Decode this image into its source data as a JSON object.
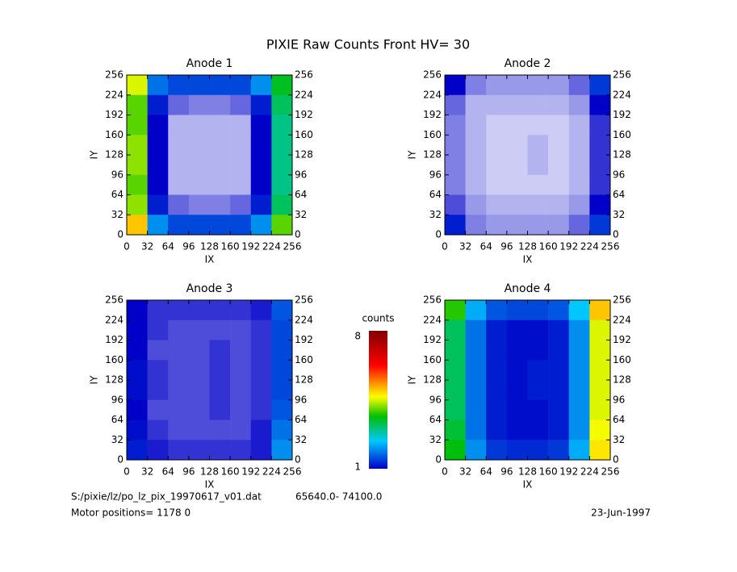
{
  "title": "PIXIE Raw Counts Front HV= 30",
  "chart_data": [
    {
      "type": "heatmap",
      "title": "Anode 1",
      "xlabel": "IX",
      "ylabel": "IY",
      "xlim": [
        0,
        256
      ],
      "ylim": [
        0,
        256
      ],
      "xticks": [
        0,
        32,
        64,
        96,
        128,
        160,
        192,
        224,
        256
      ],
      "yticks": [
        0,
        32,
        64,
        96,
        128,
        160,
        192,
        224,
        256
      ],
      "values": [
        [
          4.5,
          1.8,
          1.5,
          1.5,
          1.5,
          1.5,
          2.0,
          3.5
        ],
        [
          4.0,
          1.2,
          0.6,
          0.5,
          0.5,
          0.6,
          1.2,
          3.2
        ],
        [
          4.0,
          1.0,
          0.3,
          0.3,
          0.3,
          0.3,
          1.0,
          3.0
        ],
        [
          4.2,
          1.0,
          0.3,
          0.3,
          0.3,
          0.3,
          1.0,
          3.0
        ],
        [
          4.2,
          1.0,
          0.3,
          0.3,
          0.3,
          0.3,
          1.0,
          3.0
        ],
        [
          4.0,
          1.0,
          0.3,
          0.3,
          0.3,
          0.3,
          1.0,
          3.0
        ],
        [
          4.2,
          1.2,
          0.6,
          0.5,
          0.5,
          0.6,
          1.2,
          3.2
        ],
        [
          5.0,
          2.0,
          1.5,
          1.5,
          1.5,
          1.5,
          2.0,
          4.0
        ]
      ]
    },
    {
      "type": "heatmap",
      "title": "Anode 2",
      "xlabel": "IX",
      "ylabel": "IY",
      "xlim": [
        0,
        256
      ],
      "ylim": [
        0,
        256
      ],
      "xticks": [
        0,
        32,
        64,
        96,
        128,
        160,
        192,
        224,
        256
      ],
      "yticks": [
        0,
        32,
        64,
        96,
        128,
        160,
        192,
        224,
        256
      ],
      "values": [
        [
          1.0,
          0.5,
          0.4,
          0.4,
          0.4,
          0.4,
          0.6,
          1.4
        ],
        [
          0.6,
          0.3,
          0.3,
          0.3,
          0.3,
          0.3,
          0.4,
          1.0
        ],
        [
          0.5,
          0.3,
          0.2,
          0.2,
          0.2,
          0.2,
          0.3,
          0.8
        ],
        [
          0.5,
          0.3,
          0.2,
          0.2,
          0.3,
          0.2,
          0.3,
          0.8
        ],
        [
          0.5,
          0.3,
          0.2,
          0.2,
          0.3,
          0.2,
          0.3,
          0.8
        ],
        [
          0.5,
          0.3,
          0.2,
          0.2,
          0.2,
          0.2,
          0.3,
          0.8
        ],
        [
          0.7,
          0.4,
          0.3,
          0.3,
          0.3,
          0.3,
          0.4,
          1.0
        ],
        [
          1.2,
          0.5,
          0.4,
          0.4,
          0.4,
          0.4,
          0.6,
          1.4
        ]
      ]
    },
    {
      "type": "heatmap",
      "title": "Anode 3",
      "xlabel": "IX",
      "ylabel": "IY",
      "xlim": [
        0,
        256
      ],
      "ylim": [
        0,
        256
      ],
      "xticks": [
        0,
        32,
        64,
        96,
        128,
        160,
        192,
        224,
        256
      ],
      "yticks": [
        0,
        32,
        64,
        96,
        128,
        160,
        192,
        224,
        256
      ],
      "values": [
        [
          1.0,
          0.8,
          0.8,
          0.8,
          0.8,
          0.8,
          0.9,
          1.6
        ],
        [
          1.0,
          0.8,
          0.7,
          0.7,
          0.7,
          0.7,
          0.8,
          1.5
        ],
        [
          1.0,
          0.7,
          0.7,
          0.7,
          0.8,
          0.7,
          0.8,
          1.5
        ],
        [
          1.1,
          0.8,
          0.7,
          0.7,
          0.8,
          0.7,
          0.8,
          1.5
        ],
        [
          1.1,
          0.8,
          0.7,
          0.7,
          0.8,
          0.7,
          0.8,
          1.5
        ],
        [
          1.0,
          0.7,
          0.7,
          0.7,
          0.8,
          0.7,
          0.8,
          1.6
        ],
        [
          1.1,
          0.8,
          0.7,
          0.7,
          0.7,
          0.7,
          0.9,
          1.8
        ],
        [
          1.2,
          0.9,
          0.8,
          0.8,
          0.8,
          0.8,
          0.9,
          2.0
        ]
      ]
    },
    {
      "type": "heatmap",
      "title": "Anode 4",
      "xlabel": "IX",
      "ylabel": "IY",
      "xlim": [
        0,
        256
      ],
      "ylim": [
        0,
        256
      ],
      "xticks": [
        0,
        32,
        64,
        96,
        128,
        160,
        192,
        224,
        256
      ],
      "yticks": [
        0,
        32,
        64,
        96,
        128,
        160,
        192,
        224,
        256
      ],
      "values": [
        [
          3.8,
          2.2,
          1.6,
          1.5,
          1.5,
          1.6,
          2.4,
          5.0
        ],
        [
          3.2,
          1.8,
          1.2,
          1.1,
          1.1,
          1.2,
          2.0,
          4.5
        ],
        [
          3.2,
          1.8,
          1.2,
          1.1,
          1.1,
          1.2,
          2.0,
          4.5
        ],
        [
          3.2,
          1.8,
          1.2,
          1.1,
          1.2,
          1.2,
          2.0,
          4.5
        ],
        [
          3.2,
          1.8,
          1.2,
          1.1,
          1.2,
          1.2,
          2.0,
          4.5
        ],
        [
          3.2,
          1.8,
          1.2,
          1.1,
          1.1,
          1.2,
          2.0,
          4.5
        ],
        [
          3.4,
          1.8,
          1.2,
          1.1,
          1.1,
          1.2,
          2.0,
          4.6
        ],
        [
          3.6,
          2.0,
          1.4,
          1.3,
          1.3,
          1.4,
          2.2,
          4.8
        ]
      ]
    }
  ],
  "colorbar": {
    "label": "counts",
    "clim": [
      1,
      8
    ],
    "ticks": [
      1,
      8
    ]
  },
  "footer": {
    "file": "S:/pixie/lz/po_lz_pix_19970617_v01.dat",
    "range": "65640.0- 74100.0",
    "motor": "Motor positions= 1178 0",
    "date": "23-Jun-1997"
  }
}
